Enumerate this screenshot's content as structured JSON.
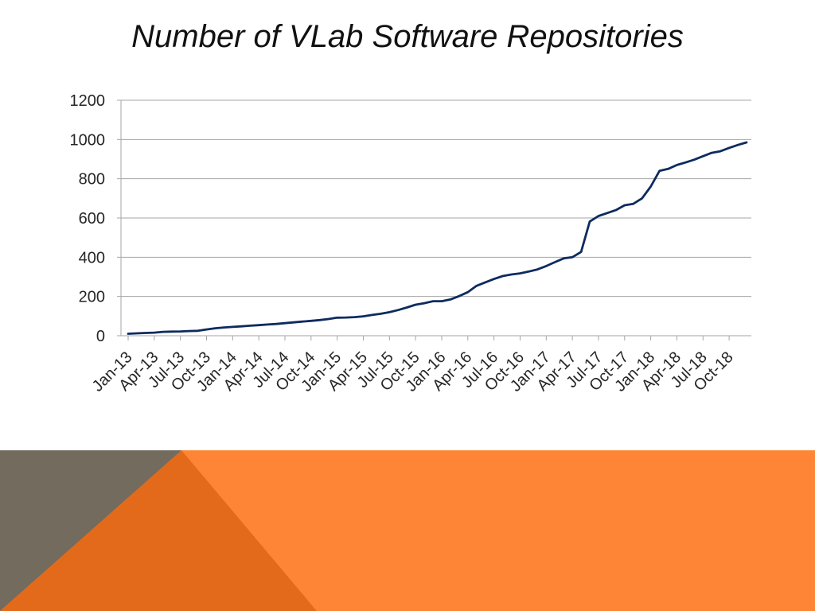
{
  "slide": {
    "title": "Number of VLab Software Repositories"
  },
  "chart_data": {
    "type": "line",
    "title": "",
    "xlabel": "",
    "ylabel": "",
    "ylim": [
      0,
      1200
    ],
    "y_ticks": [
      0,
      200,
      400,
      600,
      800,
      1000,
      1200
    ],
    "x_tick_labels": [
      "Jan-13",
      "Apr-13",
      "Jul-13",
      "Oct-13",
      "Jan-14",
      "Apr-14",
      "Jul-14",
      "Oct-14",
      "Jan-15",
      "Apr-15",
      "Jul-15",
      "Oct-15",
      "Jan-16",
      "Apr-16",
      "Jul-16",
      "Oct-16",
      "Jan-17",
      "Apr-17",
      "Jul-17",
      "Oct-17",
      "Jan-18",
      "Apr-18",
      "Jul-18",
      "Oct-18"
    ],
    "grid": "horizontal",
    "legend": "none",
    "line_color": "#0d2b5e",
    "series": [
      {
        "values": [
          10,
          12,
          14,
          16,
          20,
          21,
          22,
          24,
          25,
          32,
          38,
          42,
          45,
          48,
          51,
          54,
          57,
          60,
          64,
          68,
          72,
          76,
          80,
          85,
          92,
          93,
          95,
          99,
          106,
          112,
          120,
          131,
          144,
          158,
          166,
          176,
          176,
          185,
          202,
          222,
          254,
          272,
          289,
          304,
          312,
          318,
          327,
          338,
          355,
          375,
          394,
          400,
          427,
          582,
          610,
          625,
          640,
          665,
          672,
          700,
          760,
          840,
          850,
          870,
          883,
          897,
          915,
          932,
          940,
          957,
          972,
          985
        ]
      }
    ]
  },
  "theme": {
    "grid_color": "#a6a6a6",
    "band_orange": "#fd8535",
    "band_dark_orange": "#e36a1a",
    "band_gray": "#726b5e"
  }
}
